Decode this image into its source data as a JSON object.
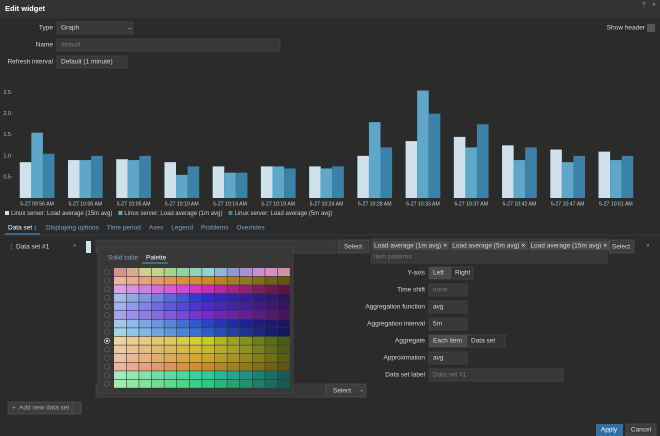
{
  "header": {
    "title": "Edit widget"
  },
  "form": {
    "type_label": "Type",
    "type_value": "Graph",
    "show_header": "Show header",
    "name_label": "Name",
    "name_placeholder": "default",
    "refresh_label": "Refresh interval",
    "refresh_value": "Default (1 minute)"
  },
  "chart_data": {
    "type": "bar",
    "categories": [
      "5-27 09:56 AM",
      "5-27 10:00 AM",
      "5-27 10:05 AM",
      "5-27 10:10 AM",
      "5-27 10:14 AM",
      "5-27 10:19 AM",
      "5-27 10:24 AM",
      "5-27 10:28 AM",
      "5-27 10:33 AM",
      "5-27 10:37 AM",
      "5-27 10:42 AM",
      "5-27 10:47 AM",
      "5-27 10:51 AM"
    ],
    "series": [
      {
        "name": "Linux server: Load average (15m avg)",
        "color": "#cfe2ec",
        "values": [
          0.85,
          0.9,
          0.92,
          0.85,
          0.75,
          0.75,
          0.75,
          1.0,
          1.35,
          1.45,
          1.25,
          1.15,
          1.1
        ]
      },
      {
        "name": "Linux server: Load average (1m avg)",
        "color": "#5fa6c8",
        "values": [
          1.55,
          0.9,
          0.9,
          0.55,
          0.6,
          0.75,
          0.7,
          1.8,
          2.55,
          1.2,
          0.9,
          0.85,
          0.9
        ]
      },
      {
        "name": "Linux server: Load average (5m avg)",
        "color": "#3b82a8",
        "values": [
          1.05,
          1.0,
          1.0,
          0.75,
          0.6,
          0.7,
          0.75,
          1.2,
          2.0,
          1.75,
          1.2,
          1.0,
          1.0
        ]
      }
    ],
    "ylim": [
      0,
      2.8
    ],
    "yticks": [
      0.5,
      {
        "value": 1,
        "label": "1.0"
      },
      1.5,
      {
        "value": 2,
        "label": "2.0"
      },
      2.5
    ],
    "grid": false
  },
  "tabs": {
    "data_set": "Data set",
    "data_set_count": "1",
    "others": [
      "Displaying options",
      "Time period",
      "Axes",
      "Legend",
      "Problems",
      "Overrides"
    ]
  },
  "dataset": {
    "name": "Data set #1",
    "select": "Select",
    "items": [
      "Load average (1m avg)",
      "Load average (5m avg)",
      "Load average (15m avg)"
    ],
    "items_select": "Select",
    "item_patterns": "item patterns"
  },
  "palette": {
    "solid": "Solid color",
    "palette": "Palette"
  },
  "fields": {
    "y_axis": "Y-axis",
    "left": "Left",
    "right": "Right",
    "time_shift": "Time shift",
    "time_shift_value": "none",
    "agg_function": "Aggregation function",
    "agg_function_value": "avg",
    "agg_interval": "Aggregation interval",
    "agg_interval_value": "5m",
    "aggregate": "Aggregate",
    "each_item": "Each item",
    "data_set": "Data set",
    "approximation": "Approximation",
    "approximation_value": "avg",
    "label": "Data set label",
    "label_placeholder": "Data set #1"
  },
  "footer": {
    "select": "Select",
    "add": "Add new data set",
    "apply": "Apply",
    "cancel": "Cancel"
  }
}
